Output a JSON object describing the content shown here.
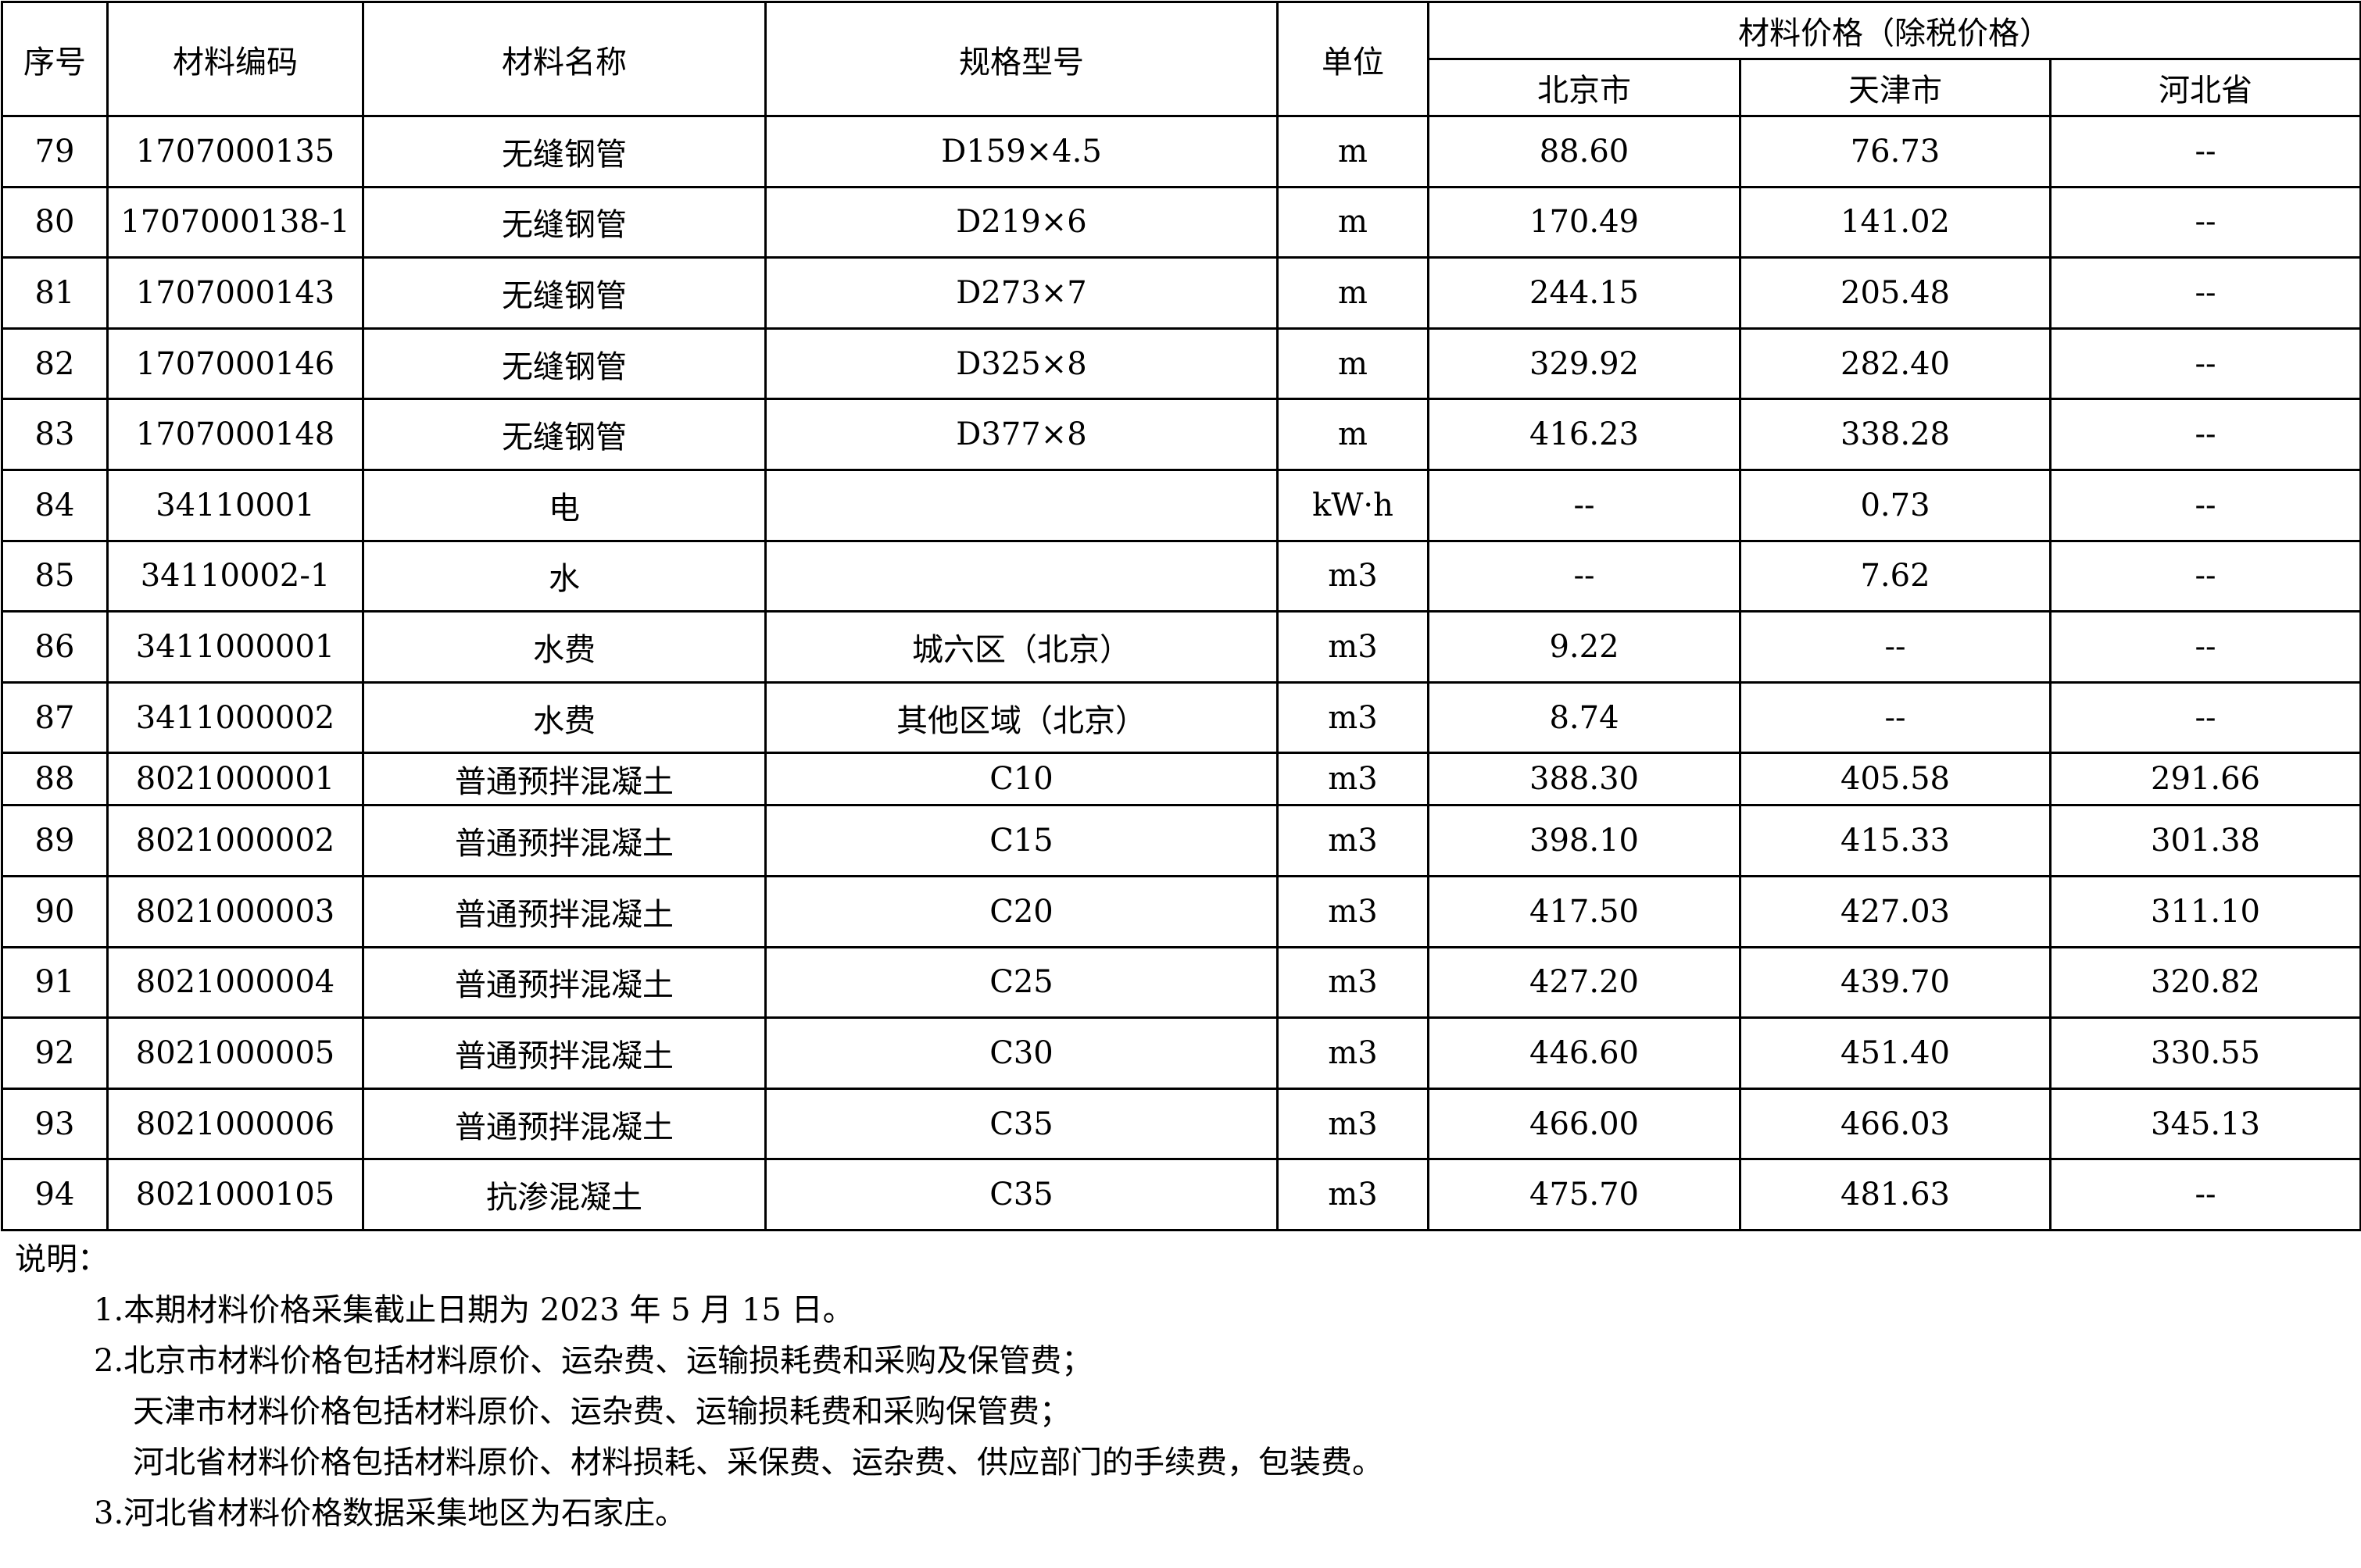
{
  "header": {
    "seq": "序号",
    "code": "材料编码",
    "name": "材料名称",
    "spec": "规格型号",
    "unit": "单位",
    "price_group": "材料价格（除税价格）",
    "beijing": "北京市",
    "tianjin": "天津市",
    "hebei": "河北省"
  },
  "rows": [
    {
      "seq": "79",
      "code": "1707000135",
      "name": "无缝钢管",
      "spec": "D159×4.5",
      "unit": "m",
      "beijing": "88.60",
      "tianjin": "76.73",
      "hebei": "--"
    },
    {
      "seq": "80",
      "code": "1707000138-1",
      "name": "无缝钢管",
      "spec": "D219×6",
      "unit": "m",
      "beijing": "170.49",
      "tianjin": "141.02",
      "hebei": "--"
    },
    {
      "seq": "81",
      "code": "1707000143",
      "name": "无缝钢管",
      "spec": "D273×7",
      "unit": "m",
      "beijing": "244.15",
      "tianjin": "205.48",
      "hebei": "--"
    },
    {
      "seq": "82",
      "code": "1707000146",
      "name": "无缝钢管",
      "spec": "D325×8",
      "unit": "m",
      "beijing": "329.92",
      "tianjin": "282.40",
      "hebei": "--"
    },
    {
      "seq": "83",
      "code": "1707000148",
      "name": "无缝钢管",
      "spec": "D377×8",
      "unit": "m",
      "beijing": "416.23",
      "tianjin": "338.28",
      "hebei": "--"
    },
    {
      "seq": "84",
      "code": "34110001",
      "name": "电",
      "spec": "",
      "unit": "kW·h",
      "beijing": "--",
      "tianjin": "0.73",
      "hebei": "--"
    },
    {
      "seq": "85",
      "code": "34110002-1",
      "name": "水",
      "spec": "",
      "unit": "m3",
      "beijing": "--",
      "tianjin": "7.62",
      "hebei": "--"
    },
    {
      "seq": "86",
      "code": "3411000001",
      "name": "水费",
      "spec": "城六区（北京）",
      "unit": "m3",
      "beijing": "9.22",
      "tianjin": "--",
      "hebei": "--"
    },
    {
      "seq": "87",
      "code": "3411000002",
      "name": "水费",
      "spec": "其他区域（北京）",
      "unit": "m3",
      "beijing": "8.74",
      "tianjin": "--",
      "hebei": "--"
    },
    {
      "seq": "88",
      "code": "8021000001",
      "name": "普通预拌混凝土",
      "spec": "C10",
      "unit": "m3",
      "beijing": "388.30",
      "tianjin": "405.58",
      "hebei": "291.66"
    },
    {
      "seq": "89",
      "code": "8021000002",
      "name": "普通预拌混凝土",
      "spec": "C15",
      "unit": "m3",
      "beijing": "398.10",
      "tianjin": "415.33",
      "hebei": "301.38"
    },
    {
      "seq": "90",
      "code": "8021000003",
      "name": "普通预拌混凝土",
      "spec": "C20",
      "unit": "m3",
      "beijing": "417.50",
      "tianjin": "427.03",
      "hebei": "311.10"
    },
    {
      "seq": "91",
      "code": "8021000004",
      "name": "普通预拌混凝土",
      "spec": "C25",
      "unit": "m3",
      "beijing": "427.20",
      "tianjin": "439.70",
      "hebei": "320.82"
    },
    {
      "seq": "92",
      "code": "8021000005",
      "name": "普通预拌混凝土",
      "spec": "C30",
      "unit": "m3",
      "beijing": "446.60",
      "tianjin": "451.40",
      "hebei": "330.55"
    },
    {
      "seq": "93",
      "code": "8021000006",
      "name": "普通预拌混凝土",
      "spec": "C35",
      "unit": "m3",
      "beijing": "466.00",
      "tianjin": "466.03",
      "hebei": "345.13"
    },
    {
      "seq": "94",
      "code": "8021000105",
      "name": "抗渗混凝土",
      "spec": "C35",
      "unit": "m3",
      "beijing": "475.70",
      "tianjin": "481.63",
      "hebei": "--"
    }
  ],
  "notes": {
    "title": "说明：",
    "lines": [
      "1.本期材料价格采集截止日期为 2023 年 5 月 15 日。",
      "2.北京市材料价格包括材料原价、运杂费、运输损耗费和采购及保管费；",
      "天津市材料价格包括材料原价、运杂费、运输损耗费和采购保管费；",
      "河北省材料价格包括材料原价、材料损耗、采保费、运杂费、供应部门的手续费，包装费。",
      "3.河北省材料价格数据采集地区为石家庄。"
    ]
  }
}
